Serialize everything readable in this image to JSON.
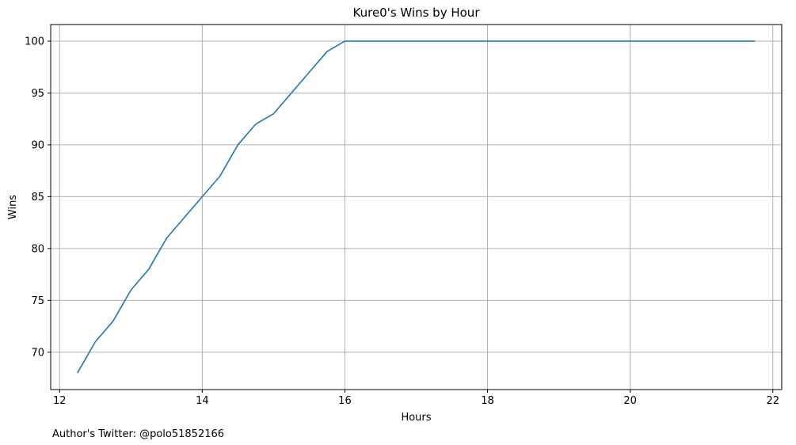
{
  "footer_text": "Author's Twitter: @polo51852166",
  "chart_data": {
    "type": "line",
    "title": "Kure0's Wins by Hour",
    "xlabel": "Hours",
    "ylabel": "Wins",
    "xlim": [
      11.875,
      22.125
    ],
    "ylim": [
      66.4,
      101.6
    ],
    "xticks": [
      12,
      14,
      16,
      18,
      20,
      22
    ],
    "yticks": [
      70,
      75,
      80,
      85,
      90,
      95,
      100
    ],
    "grid": true,
    "line_color": "#1f77b4",
    "series": [
      {
        "x": [
          12.25,
          12.5,
          12.75,
          13.0,
          13.25,
          13.5,
          13.75,
          14.0,
          14.25,
          14.5,
          14.75,
          15.0,
          15.25,
          15.5,
          15.75,
          16.0,
          16.25,
          16.5,
          16.75,
          17.0,
          17.25,
          17.5,
          17.75,
          18.0,
          18.25,
          18.5,
          18.75,
          19.0,
          19.25,
          19.5,
          19.75,
          20.0,
          20.25,
          20.5,
          20.75,
          21.0,
          21.25,
          21.5,
          21.75
        ],
        "y": [
          68,
          71,
          73,
          76,
          78,
          81,
          83,
          85,
          87,
          90,
          92,
          93,
          95,
          97,
          99,
          100,
          100,
          100,
          100,
          100,
          100,
          100,
          100,
          100,
          100,
          100,
          100,
          100,
          100,
          100,
          100,
          100,
          100,
          100,
          100,
          100,
          100,
          100,
          100
        ]
      }
    ]
  }
}
